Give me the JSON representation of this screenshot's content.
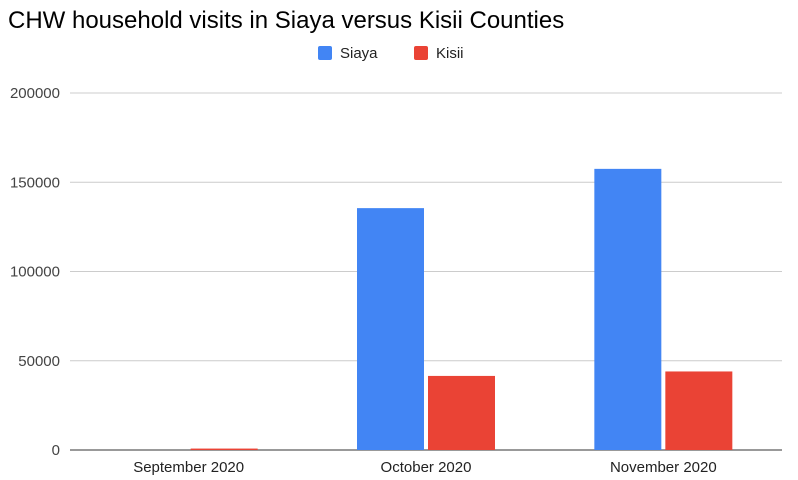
{
  "chart_data": {
    "type": "bar",
    "title": "CHW household visits in Siaya versus Kisii Counties",
    "categories": [
      "September 2020",
      "October 2020",
      "November 2020"
    ],
    "series": [
      {
        "name": "Siaya",
        "color": "#4285f4",
        "values": [
          0,
          135500,
          157500
        ]
      },
      {
        "name": "Kisii",
        "color": "#ea4335",
        "values": [
          800,
          41500,
          44000
        ]
      }
    ],
    "xlabel": "",
    "ylabel": "",
    "ylim": [
      0,
      200000
    ],
    "yticks": [
      0,
      50000,
      100000,
      150000,
      200000
    ],
    "grid": true,
    "legend_position": "top-center"
  }
}
